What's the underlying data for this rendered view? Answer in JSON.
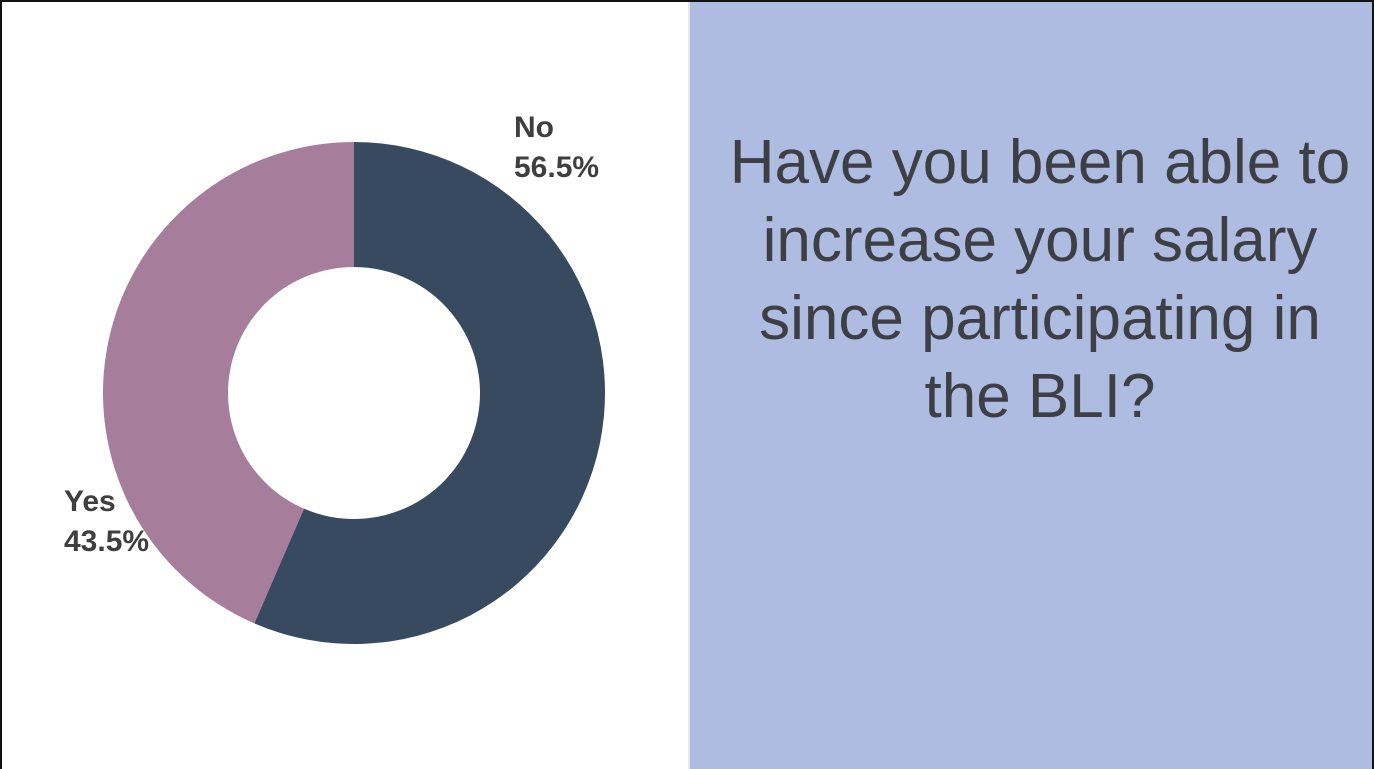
{
  "question": {
    "text": "Have you been able to increase your salary since participating in the BLI?"
  },
  "chart_data": {
    "type": "pie",
    "donut": true,
    "categories": [
      "No",
      "Yes"
    ],
    "values": [
      56.5,
      43.5
    ],
    "labels": [
      "56.5%",
      "43.5%"
    ],
    "colors": [
      "#374a60",
      "#a77d9c"
    ],
    "title": "",
    "legend": "none"
  },
  "colors": {
    "question_panel_bg": "#aebce2",
    "label_text": "#3f3f3f"
  }
}
